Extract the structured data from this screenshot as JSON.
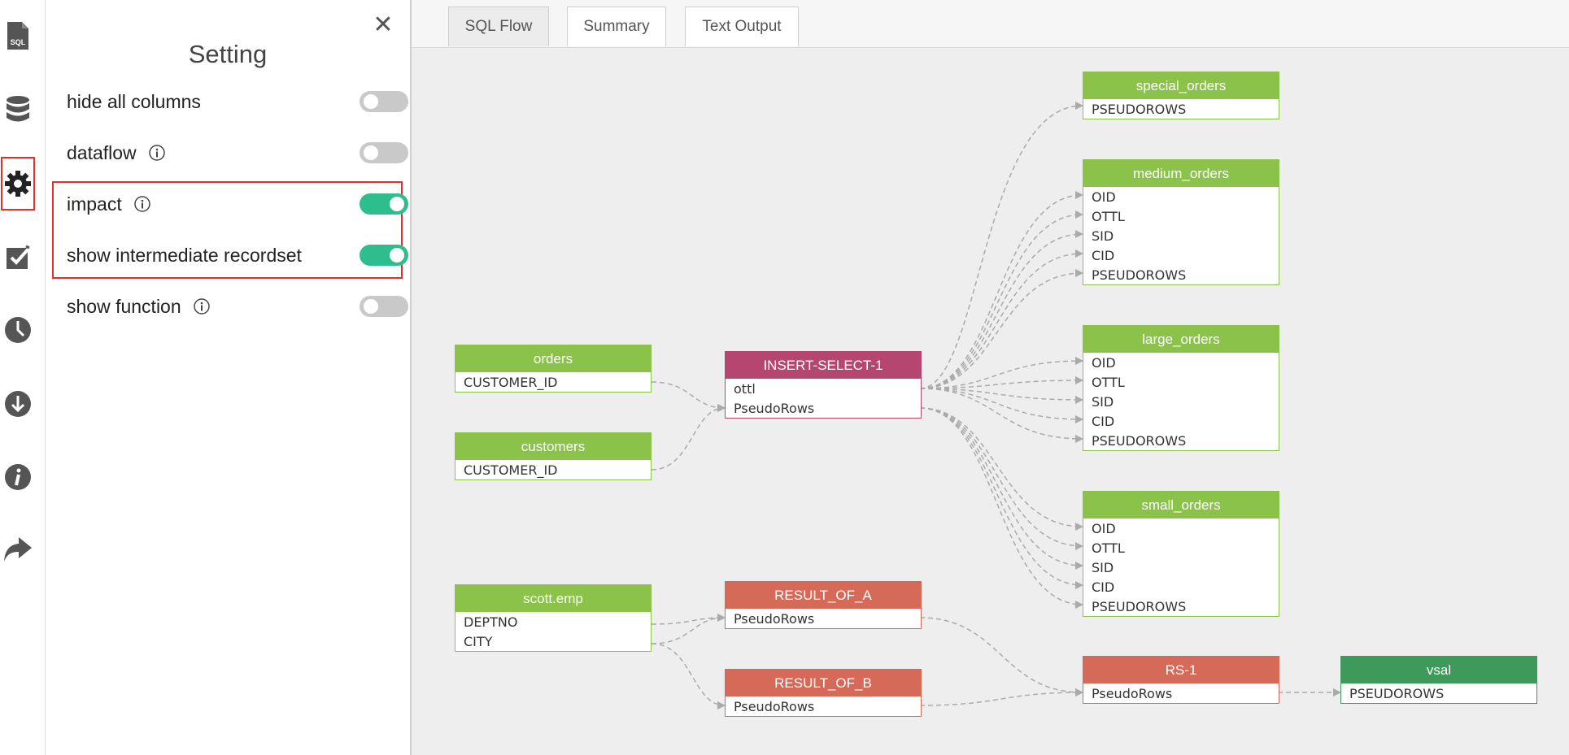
{
  "sidebar": {
    "icons": [
      {
        "name": "sql-file-icon",
        "label": "SQL"
      },
      {
        "name": "database-icon"
      },
      {
        "name": "settings-gear-icon",
        "active": true
      },
      {
        "name": "checklist-icon"
      },
      {
        "name": "history-clock-icon"
      },
      {
        "name": "download-icon"
      },
      {
        "name": "info-icon"
      },
      {
        "name": "share-icon"
      }
    ]
  },
  "settings": {
    "title": "Setting",
    "options": [
      {
        "label": "hide all columns",
        "has_info": false,
        "enabled": false
      },
      {
        "label": "dataflow",
        "has_info": true,
        "enabled": false
      },
      {
        "label": "impact",
        "has_info": true,
        "enabled": true
      },
      {
        "label": "show intermediate recordset",
        "has_info": false,
        "enabled": true
      },
      {
        "label": "show function",
        "has_info": true,
        "enabled": false
      }
    ]
  },
  "tabs": [
    {
      "label": "SQL Flow",
      "active": true
    },
    {
      "label": "Summary",
      "active": false
    },
    {
      "label": "Text Output",
      "active": false
    }
  ],
  "colors": {
    "table_green": "#8bc34a",
    "insert_pink": "#b5466f",
    "result_red": "#d66a59",
    "target_green": "#3d9a5a",
    "toggle_on": "#2ebd8d",
    "highlight_red": "#e03030"
  },
  "nodes": {
    "special_orders": {
      "title": "special_orders",
      "rows": [
        "PSEUDOROWS"
      ]
    },
    "medium_orders": {
      "title": "medium_orders",
      "rows": [
        "OID",
        "OTTL",
        "SID",
        "CID",
        "PSEUDOROWS"
      ]
    },
    "large_orders": {
      "title": "large_orders",
      "rows": [
        "OID",
        "OTTL",
        "SID",
        "CID",
        "PSEUDOROWS"
      ]
    },
    "small_orders": {
      "title": "small_orders",
      "rows": [
        "OID",
        "OTTL",
        "SID",
        "CID",
        "PSEUDOROWS"
      ]
    },
    "orders": {
      "title": "orders",
      "rows": [
        "CUSTOMER_ID"
      ]
    },
    "customers": {
      "title": "customers",
      "rows": [
        "CUSTOMER_ID"
      ]
    },
    "insert_select": {
      "title": "INSERT-SELECT-1",
      "rows": [
        "ottl",
        "PseudoRows"
      ]
    },
    "scott_emp": {
      "title": "scott.emp",
      "rows": [
        "DEPTNO",
        "CITY"
      ]
    },
    "result_a": {
      "title": "RESULT_OF_A",
      "rows": [
        "PseudoRows"
      ]
    },
    "result_b": {
      "title": "RESULT_OF_B",
      "rows": [
        "PseudoRows"
      ]
    },
    "rs1": {
      "title": "RS-1",
      "rows": [
        "PseudoRows"
      ]
    },
    "vsal": {
      "title": "vsal",
      "rows": [
        "PSEUDOROWS"
      ]
    }
  }
}
